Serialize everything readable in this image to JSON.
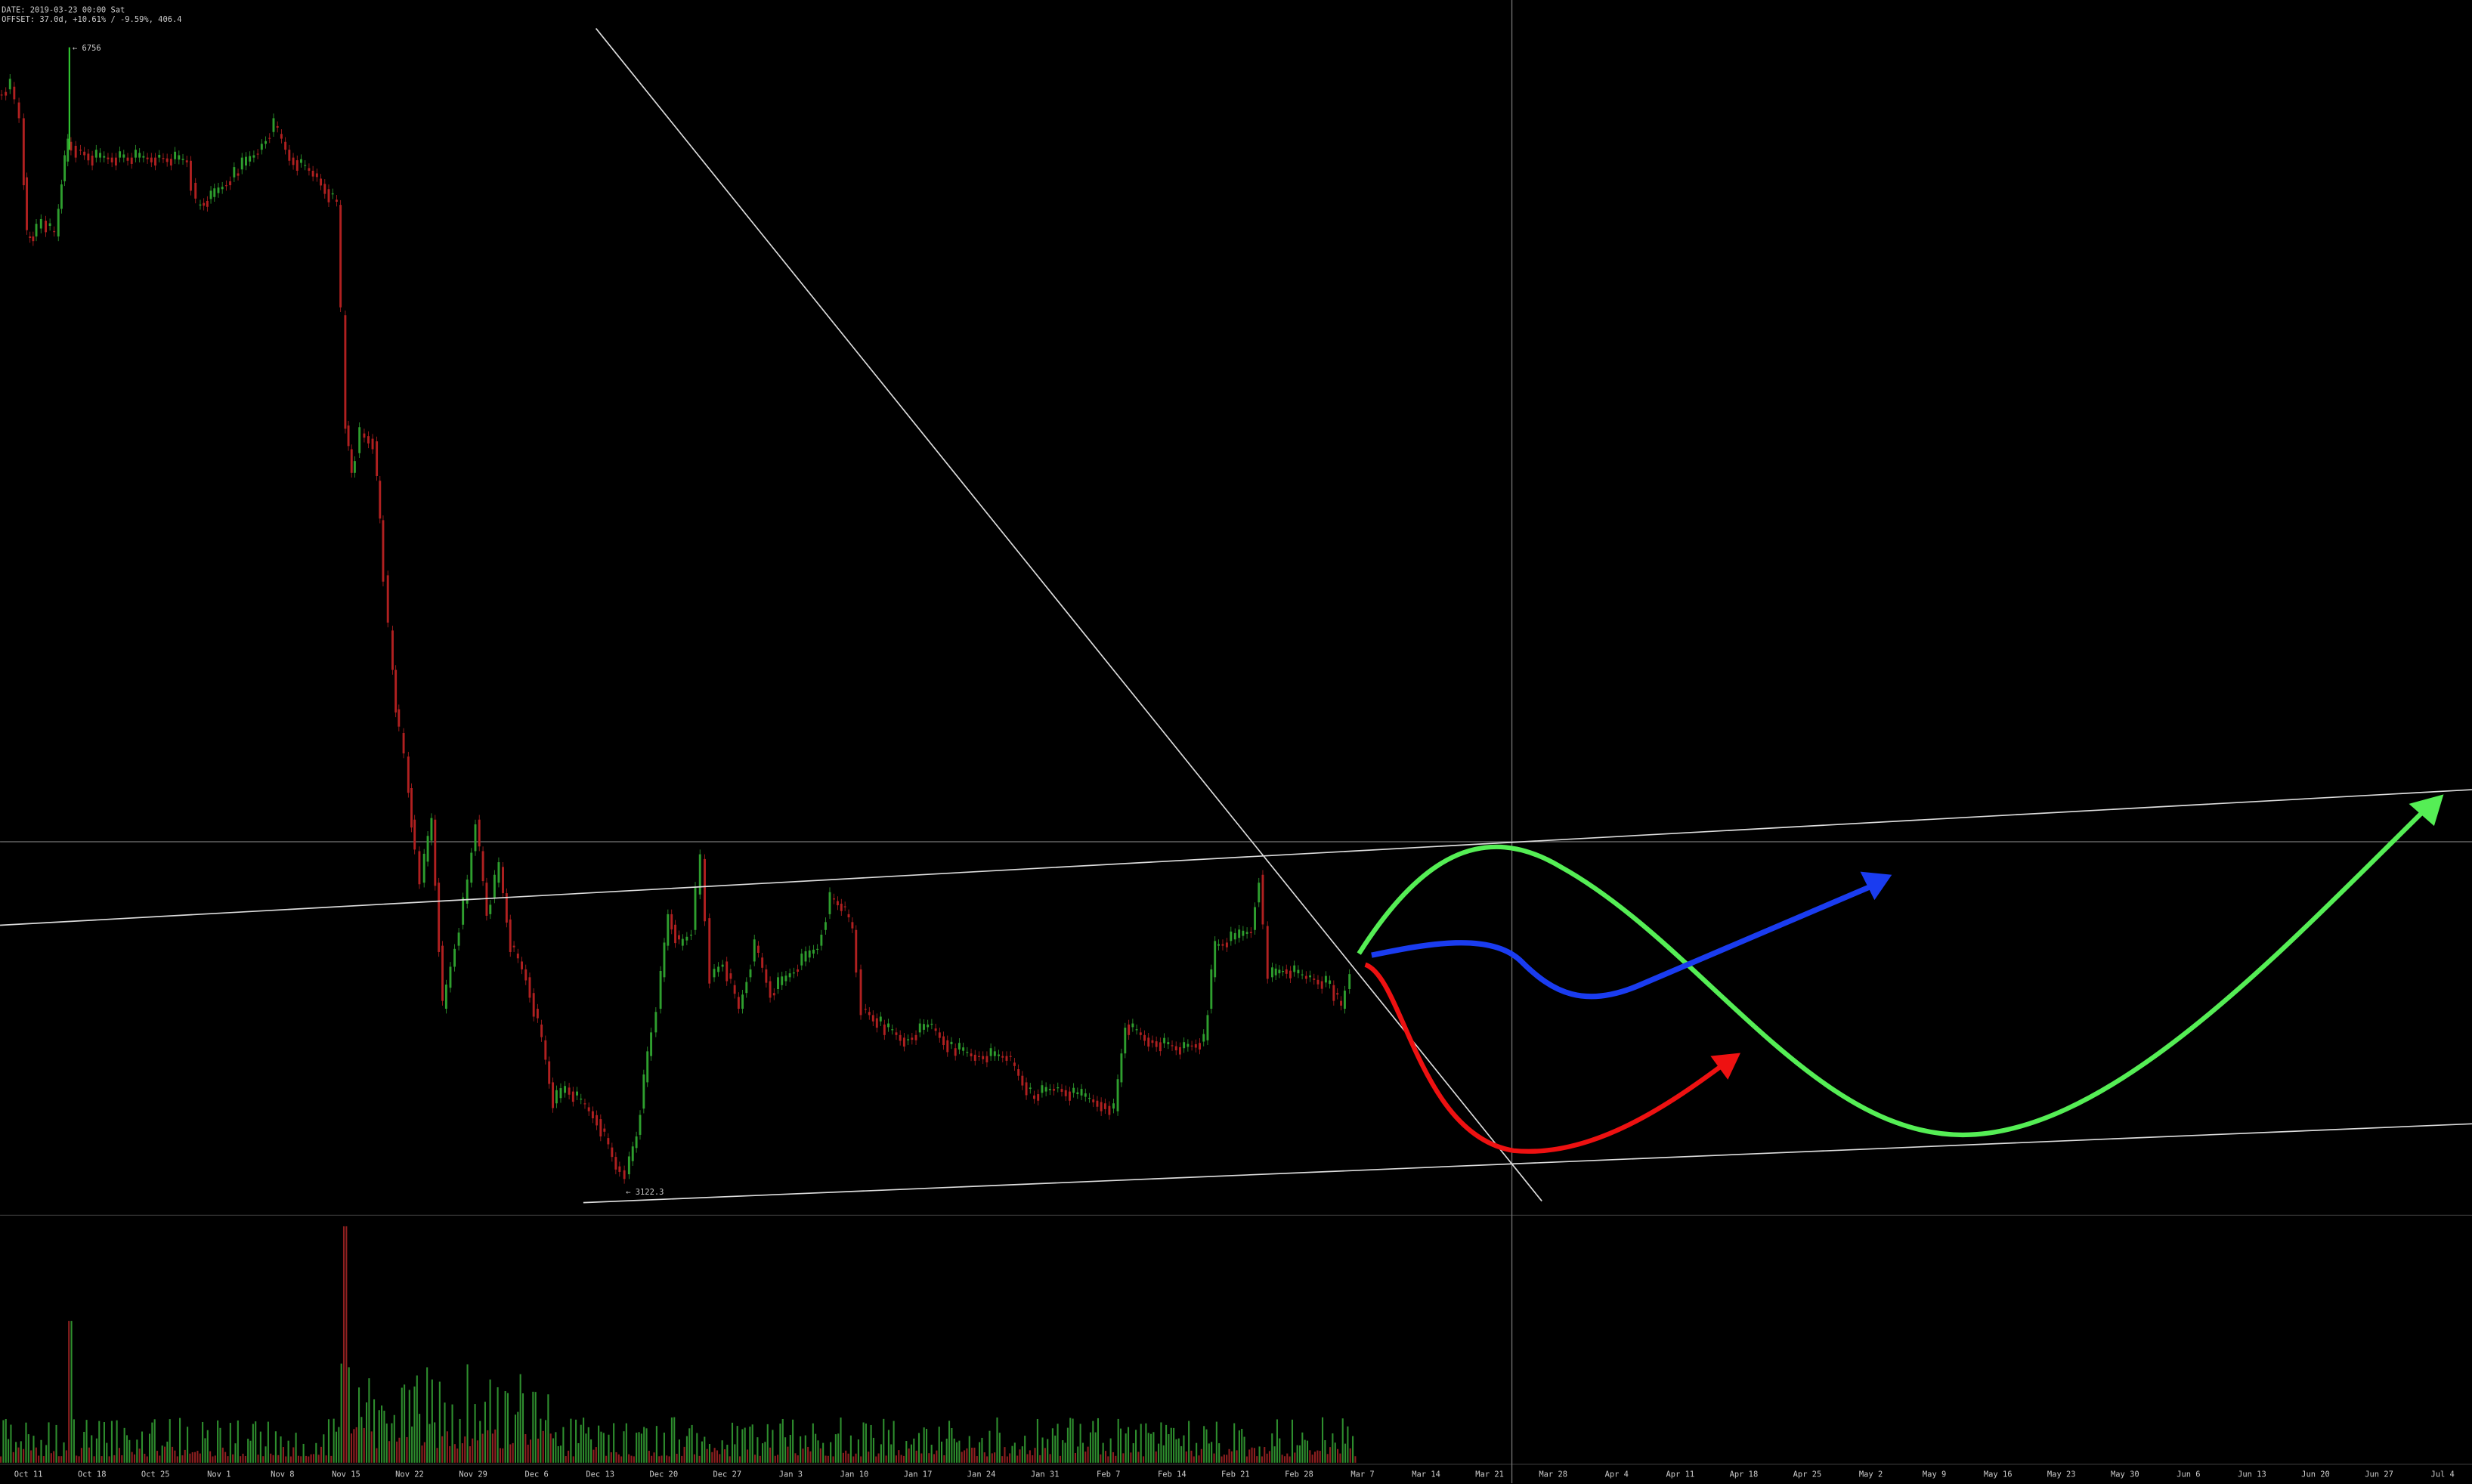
{
  "header": {
    "date": "DATE: 2019-03-23 00:00 Sat",
    "offset": "OFFSET: 37.0d, +10.61% / -9.59%, 406.4"
  },
  "price_labels": {
    "high": "← 6756",
    "low": "← 3122.3"
  },
  "x_axis": {
    "labels": [
      "Oct 11",
      "Oct 18",
      "Oct 25",
      "Nov 1",
      "Nov 8",
      "Nov 15",
      "Nov 22",
      "Nov 29",
      "Dec 6",
      "Dec 13",
      "Dec 20",
      "Dec 27",
      "Jan 3",
      "Jan 10",
      "Jan 17",
      "Jan 24",
      "Jan 31",
      "Feb 7",
      "Feb 14",
      "Feb 21",
      "Feb 28",
      "Mar 7",
      "Mar 14",
      "Mar 21",
      "Mar 28",
      "Apr 4",
      "Apr 11",
      "Apr 18",
      "Apr 25",
      "May 2",
      "May 9",
      "May 16",
      "May 23",
      "May 30",
      "Jun 6",
      "Jun 13",
      "Jun 20",
      "Jun 27",
      "Jul 4"
    ]
  }
}
